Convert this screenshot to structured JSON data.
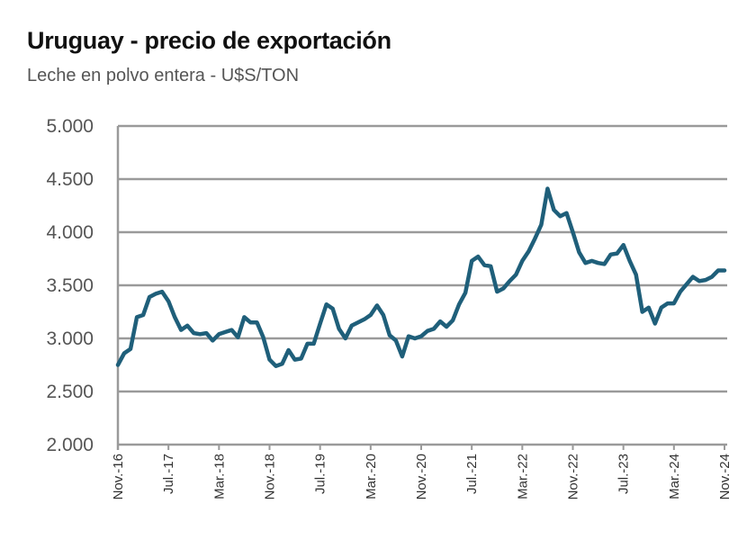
{
  "chart_data": {
    "type": "line",
    "title": "Uruguay - precio de exportación",
    "subtitle": "Leche en polvo entera - U$S/TON",
    "xlabel": "",
    "ylabel": "",
    "ylim": [
      2000,
      5000
    ],
    "yticks": [
      2000,
      2500,
      3000,
      3500,
      4000,
      4500,
      5000
    ],
    "ytick_labels": [
      "2.000",
      "2.500",
      "3.000",
      "3.500",
      "4.000",
      "4.500",
      "5.000"
    ],
    "xtick_labels": [
      "Nov.-16",
      "Jul.-17",
      "Mar.-18",
      "Nov.-18",
      "Jul.-19",
      "Mar.-20",
      "Nov.-20",
      "Jul.-21",
      "Mar.-22",
      "Nov.-22",
      "Jul.-23",
      "Mar.-24",
      "Nov.-24"
    ],
    "xtick_every_months": 8,
    "grid": true,
    "line_color": "#1f5f7a",
    "series": [
      {
        "name": "Leche en polvo entera",
        "frequency": "monthly",
        "start": "Nov-16",
        "values": [
          2750,
          2860,
          2900,
          3200,
          3220,
          3390,
          3420,
          3440,
          3350,
          3200,
          3080,
          3120,
          3050,
          3040,
          3050,
          2980,
          3040,
          3060,
          3080,
          3010,
          3200,
          3150,
          3150,
          3010,
          2800,
          2740,
          2760,
          2890,
          2800,
          2810,
          2950,
          2950,
          3140,
          3320,
          3280,
          3090,
          3000,
          3120,
          3150,
          3180,
          3220,
          3310,
          3220,
          3030,
          2980,
          2830,
          3020,
          3000,
          3020,
          3070,
          3090,
          3160,
          3110,
          3170,
          3320,
          3430,
          3730,
          3770,
          3690,
          3680,
          3440,
          3470,
          3540,
          3600,
          3730,
          3820,
          3940,
          4070,
          4410,
          4210,
          4150,
          4180,
          4000,
          3810,
          3710,
          3730,
          3710,
          3700,
          3790,
          3800,
          3880,
          3730,
          3600,
          3250,
          3290,
          3140,
          3290,
          3330,
          3330,
          3440,
          3510,
          3580,
          3540,
          3550,
          3580,
          3640,
          3640
        ]
      }
    ]
  }
}
